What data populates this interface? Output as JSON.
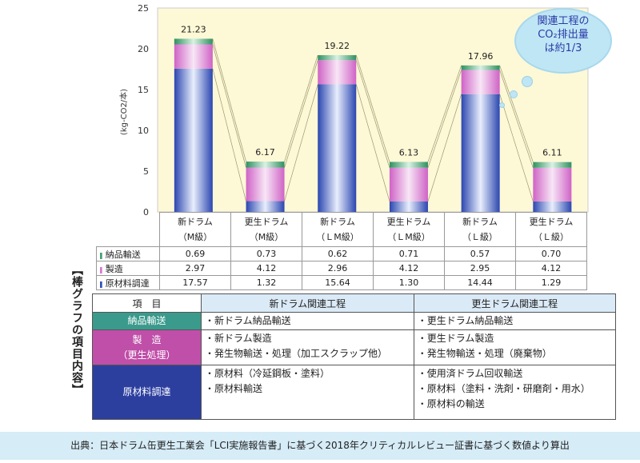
{
  "chart_data": {
    "type": "bar",
    "stacked": true,
    "ylabel": "(kg-CO2/本)",
    "ylim": [
      0,
      25
    ],
    "yticks": [
      0,
      5,
      10,
      15,
      20,
      25
    ],
    "categories": [
      [
        "新ドラム",
        "（M級）"
      ],
      [
        "更生ドラム",
        "（M級）"
      ],
      [
        "新ドラム",
        "（ＬM級）"
      ],
      [
        "更生ドラム",
        "（ＬM級）"
      ],
      [
        "新ドラム",
        "（Ｌ級）"
      ],
      [
        "更生ドラム",
        "（Ｌ級）"
      ]
    ],
    "totals": [
      "21.23",
      "6.17",
      "19.22",
      "6.13",
      "17.96",
      "6.11"
    ],
    "series": [
      {
        "name": "原材料調達",
        "color": "#2f4fb8",
        "values": [
          17.57,
          1.32,
          15.64,
          1.3,
          14.44,
          1.29
        ],
        "labels": [
          "17.57",
          "1.32",
          "15.64",
          "1.30",
          "14.44",
          "1.29"
        ]
      },
      {
        "name": "製造",
        "color": "#d678cf",
        "values": [
          2.97,
          4.12,
          2.96,
          4.12,
          2.95,
          4.12
        ],
        "labels": [
          "2.97",
          "4.12",
          "2.96",
          "4.12",
          "2.95",
          "4.12"
        ]
      },
      {
        "name": "納品輸送",
        "color": "#3f9f6e",
        "values": [
          0.69,
          0.73,
          0.62,
          0.71,
          0.57,
          0.7
        ],
        "labels": [
          "0.69",
          "0.73",
          "0.62",
          "0.71",
          "0.57",
          "0.70"
        ]
      }
    ]
  },
  "bubble": {
    "line1": "関連工程の",
    "line2": "CO₂排出量",
    "line3": "は約1/3"
  },
  "side_label": "【棒グラフの項目内容】",
  "items_table": {
    "headers": [
      "項　目",
      "新ドラム関連工程",
      "更生ドラム関連工程"
    ],
    "rows": [
      {
        "cat": "納品輸送",
        "color": "#3a9a8c",
        "new": [
          "・新ドラム納品輸送"
        ],
        "re": [
          "・更生ドラム納品輸送"
        ]
      },
      {
        "cat": "製　造\n（更生処理）",
        "color": "#bf4fa8",
        "new": [
          "・新ドラム製造",
          "・発生物輸送・処理（加工スクラップ他）"
        ],
        "re": [
          "・更生ドラム製造",
          "・発生物輸送・処理（廃棄物）"
        ]
      },
      {
        "cat": "原材料調達",
        "color": "#2c3f9f",
        "new": [
          "・原材料（冷延鋼板・塗料）",
          "・原材料輸送"
        ],
        "re": [
          "・使用済ドラム回収輸送",
          "・原材料（塗料・洗剤・研磨剤・用水）",
          "・原材料の輸送"
        ]
      }
    ]
  },
  "footer": "出典：日本ドラム缶更生工業会「LCI実施報告書」に基づく2018年クリティカルレビュー証書に基づく数値より算出"
}
